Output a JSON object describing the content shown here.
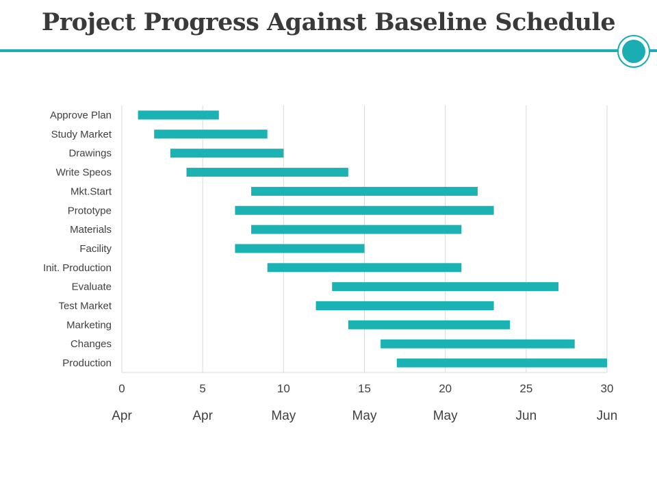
{
  "header": {
    "title": "Project Progress Against Baseline Schedule"
  },
  "colors": {
    "accent": "#1aadb2",
    "bar": "#1ab2b3",
    "grid": "#d9d9d9",
    "text": "#404040"
  },
  "chart_data": {
    "type": "bar",
    "orientation": "horizontal",
    "stacked_offset": true,
    "categories": [
      "Approve Plan",
      "Study Market",
      "Drawings",
      "Write Speos",
      "Mkt.Start",
      "Prototype",
      "Materials",
      "Facility",
      "Init. Production",
      "Evaluate",
      "Test Market",
      "Marketing",
      "Changes",
      "Production"
    ],
    "series": [
      {
        "start": [
          1,
          2,
          3,
          4,
          8,
          7,
          8,
          7,
          9,
          13,
          12,
          14,
          16,
          17
        ],
        "end": [
          6,
          9,
          10,
          14,
          22,
          23,
          21,
          15,
          21,
          27,
          23,
          24,
          28,
          30
        ]
      }
    ],
    "x_ticks": [
      "0",
      "5",
      "10",
      "15",
      "20",
      "25",
      "30"
    ],
    "x_tick_values": [
      0,
      5,
      10,
      15,
      20,
      25,
      30
    ],
    "month_labels": [
      "Apr",
      "Apr",
      "May",
      "May",
      "May",
      "Jun",
      "Jun"
    ],
    "xlim": [
      0,
      30
    ],
    "grid": true,
    "legend": "none"
  }
}
